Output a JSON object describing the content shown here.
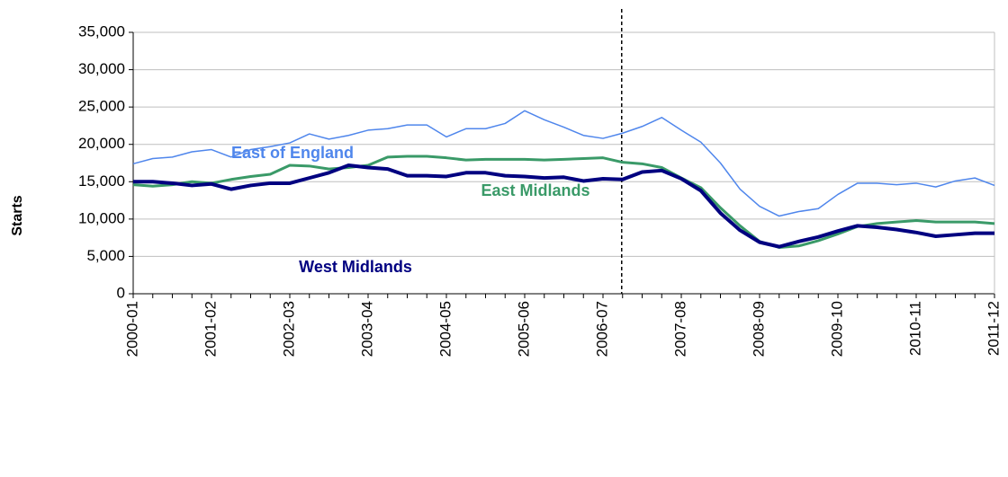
{
  "chart_data": {
    "type": "line",
    "y_label": "Starts",
    "categories": [
      "2000-01",
      null,
      null,
      null,
      "2001-02",
      null,
      null,
      null,
      "2002-03",
      null,
      null,
      null,
      "2003-04",
      null,
      null,
      null,
      "2004-05",
      null,
      null,
      null,
      "2005-06",
      null,
      null,
      null,
      "2006-07",
      null,
      null,
      null,
      "2007-08",
      null,
      null,
      null,
      "2008-09",
      null,
      null,
      null,
      "2009-10",
      null,
      null,
      null,
      "2010-11",
      null,
      null,
      null,
      "2011-12"
    ],
    "series": [
      {
        "name": "East of England",
        "color": "#4f86ec",
        "width": 1.5,
        "values": [
          17400,
          18100,
          18300,
          19000,
          19300,
          18300,
          19300,
          19700,
          20200,
          21400,
          20700,
          21200,
          21900,
          22100,
          22600,
          22600,
          21000,
          22100,
          22100,
          22800,
          24500,
          23300,
          22300,
          21200,
          20800,
          21500,
          22400,
          23600,
          21900,
          20300,
          17500,
          14000,
          11700,
          10400,
          11000,
          11400,
          13300,
          14800,
          14800,
          14600,
          14800,
          14300,
          15100,
          15500,
          14500
        ]
      },
      {
        "name": "East Midlands",
        "color": "#3a9a68",
        "width": 3,
        "values": [
          14600,
          14400,
          14600,
          15000,
          14800,
          15300,
          15700,
          16000,
          17200,
          17100,
          16700,
          16900,
          17200,
          18300,
          18400,
          18400,
          18200,
          17900,
          18000,
          18000,
          18000,
          17900,
          18000,
          18100,
          18200,
          17600,
          17400,
          16900,
          15500,
          14200,
          11500,
          9100,
          7000,
          6200,
          6400,
          7100,
          8000,
          9000,
          9400,
          9600,
          9800,
          9600,
          9600,
          9600,
          9400
        ]
      },
      {
        "name": "West Midlands",
        "color": "#000080",
        "width": 4,
        "values": [
          15000,
          15000,
          14800,
          14500,
          14700,
          14000,
          14500,
          14800,
          14800,
          15500,
          16200,
          17200,
          16900,
          16700,
          15800,
          15800,
          15700,
          16200,
          16200,
          15800,
          15700,
          15500,
          15600,
          15100,
          15400,
          15300,
          16300,
          16500,
          15400,
          13800,
          10800,
          8500,
          6900,
          6300,
          7000,
          7600,
          8400,
          9100,
          8900,
          8600,
          8200,
          7700,
          7900,
          8100,
          8100
        ]
      }
    ],
    "ylim": [
      0,
      35000
    ],
    "yticks": [
      0,
      {
        "value": 5000,
        "label": "5,000"
      },
      {
        "value": 10000,
        "label": "10,000"
      },
      {
        "value": 15000,
        "label": "15,000"
      },
      {
        "value": 20000,
        "label": "20,000"
      },
      {
        "value": 25000,
        "label": "25,000"
      },
      {
        "value": 30000,
        "label": "30,000"
      },
      {
        "value": 35000,
        "label": "35,000"
      }
    ],
    "grid": true
  }
}
